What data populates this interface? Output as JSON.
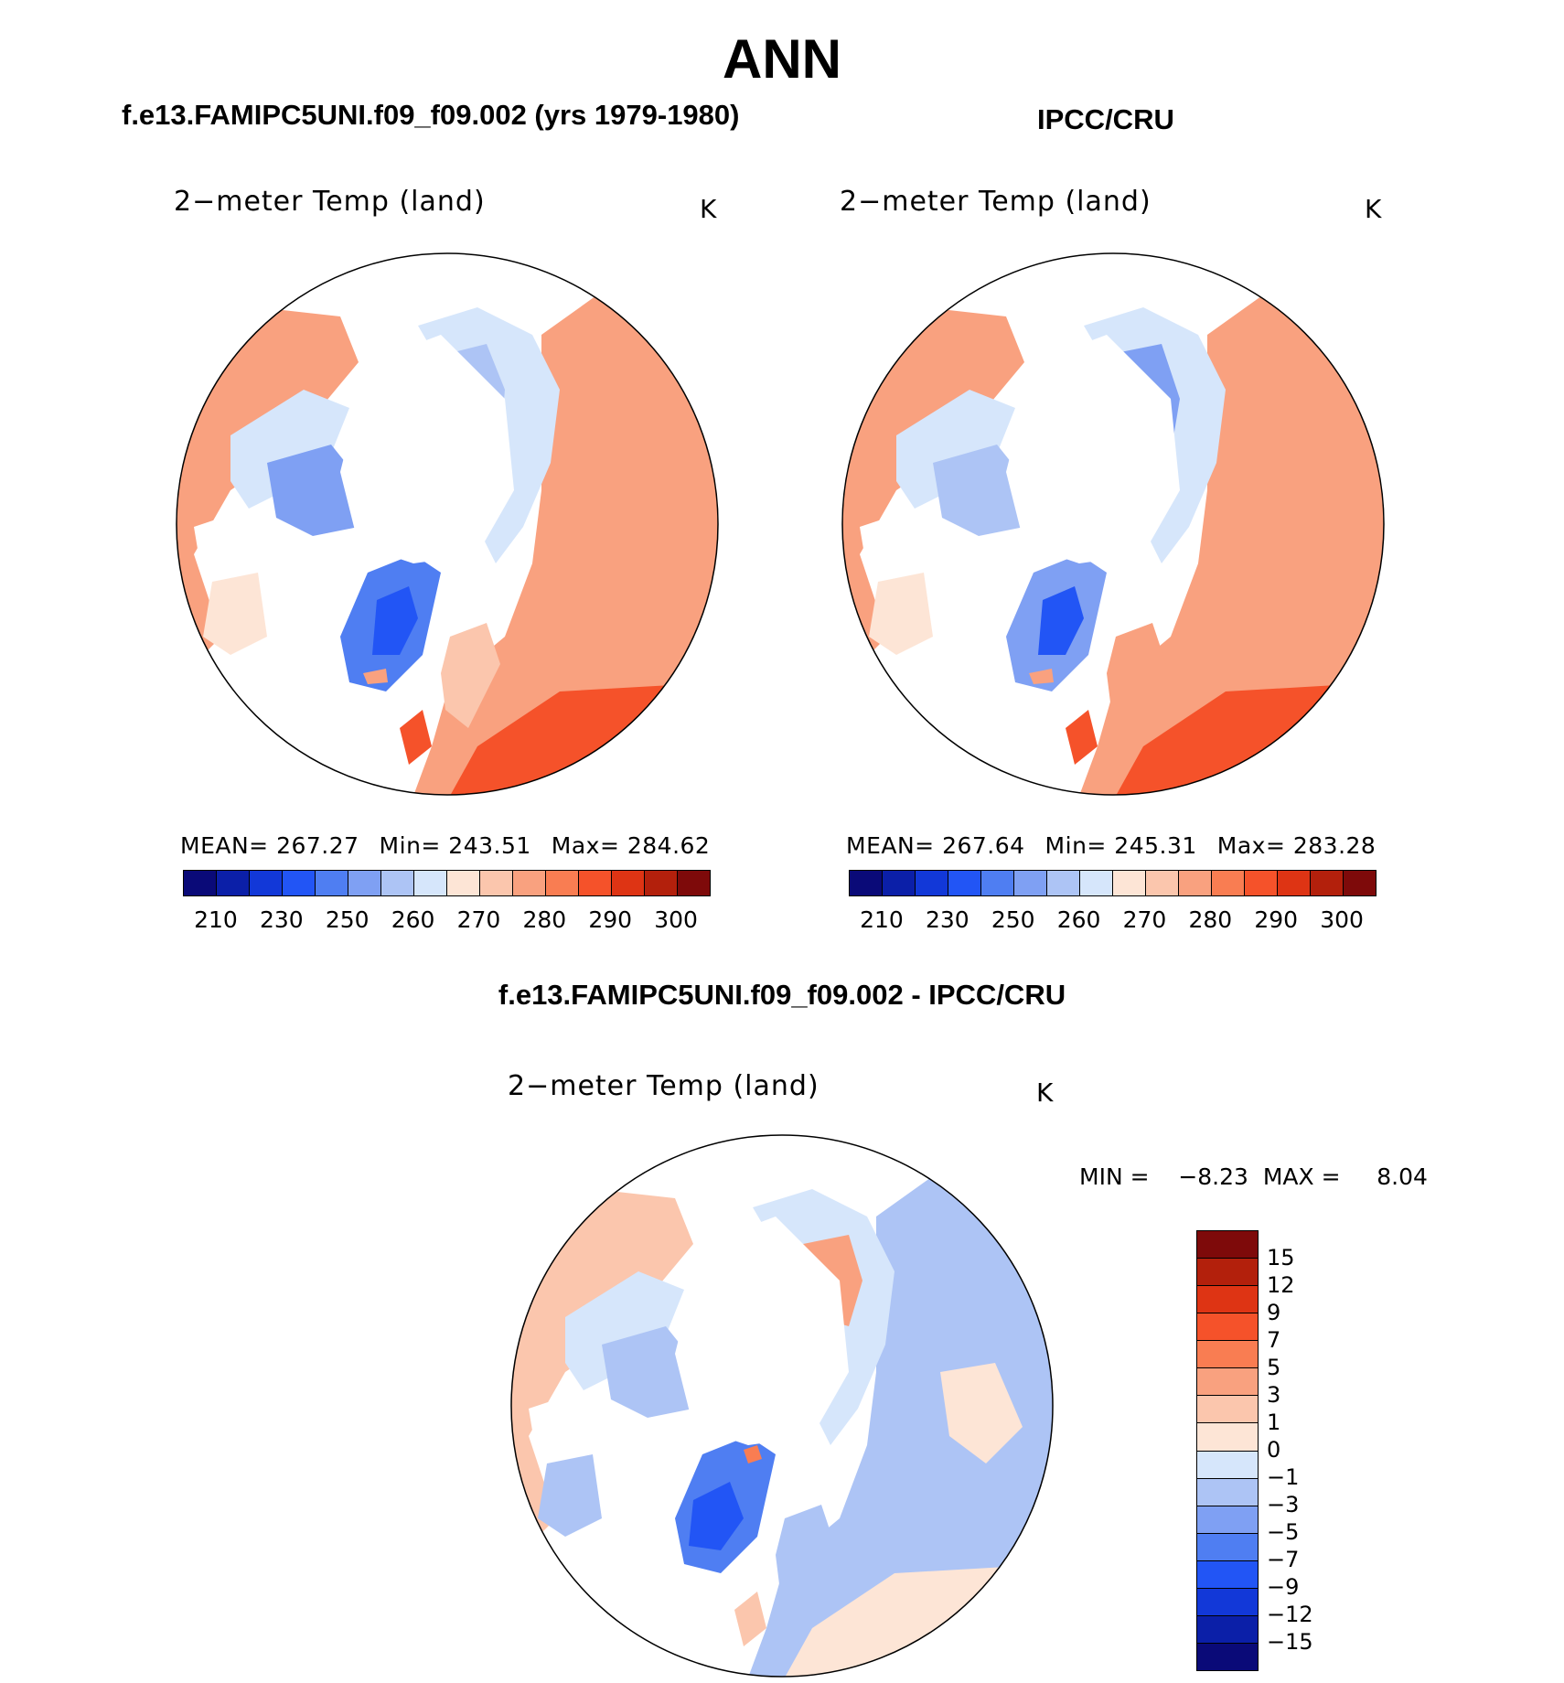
{
  "figure": {
    "season": "ANN",
    "model_title": "f.e13.FAMIPC5UNI.f09_f09.002 (yrs 1979-1980)",
    "obs_title": "IPCC/CRU",
    "diff_title": "f.e13.FAMIPC5UNI.f09_f09.002 - IPCC/CRU"
  },
  "panels": [
    {
      "variable": "2−meter Temp (land)",
      "unit": "K",
      "mean_text": "MEAN= 267.27",
      "min_text": "Min= 243.51",
      "max_text": "Max= 284.62"
    },
    {
      "variable": "2−meter Temp (land)",
      "unit": "K",
      "mean_text": "MEAN= 267.64",
      "min_text": "Min= 245.31",
      "max_text": "Max= 283.28"
    }
  ],
  "diff_panel": {
    "variable": "2−meter Temp (land)",
    "unit": "K",
    "minmax_text": "MIN =    −8.23  MAX =     8.04"
  },
  "colorbar_abs": {
    "ticks": [
      "210",
      "230",
      "250",
      "260",
      "270",
      "280",
      "290",
      "300"
    ],
    "colors": [
      "#0a0a78",
      "#0b1fa8",
      "#1238d8",
      "#2255f5",
      "#4f7ef2",
      "#7fa0f3",
      "#adc4f5",
      "#d6e6fb",
      "#fde5d6",
      "#fbc6ad",
      "#f9a17f",
      "#f97d52",
      "#f5522a",
      "#de3414",
      "#b3200c",
      "#7e0a0a"
    ]
  },
  "colorbar_diff": {
    "ticks": [
      "15",
      "12",
      "9",
      "7",
      "5",
      "3",
      "1",
      "0",
      "−1",
      "−3",
      "−5",
      "−7",
      "−9",
      "−12",
      "−15"
    ],
    "colors": [
      "#7e0a0a",
      "#b3200c",
      "#de3414",
      "#f5522a",
      "#f97d52",
      "#f9a17f",
      "#fbc6ad",
      "#fde5d6",
      "#d6e6fb",
      "#adc4f5",
      "#7fa0f3",
      "#4f7ef2",
      "#2255f5",
      "#1238d8",
      "#0b1fa8",
      "#0a0a78"
    ]
  }
}
